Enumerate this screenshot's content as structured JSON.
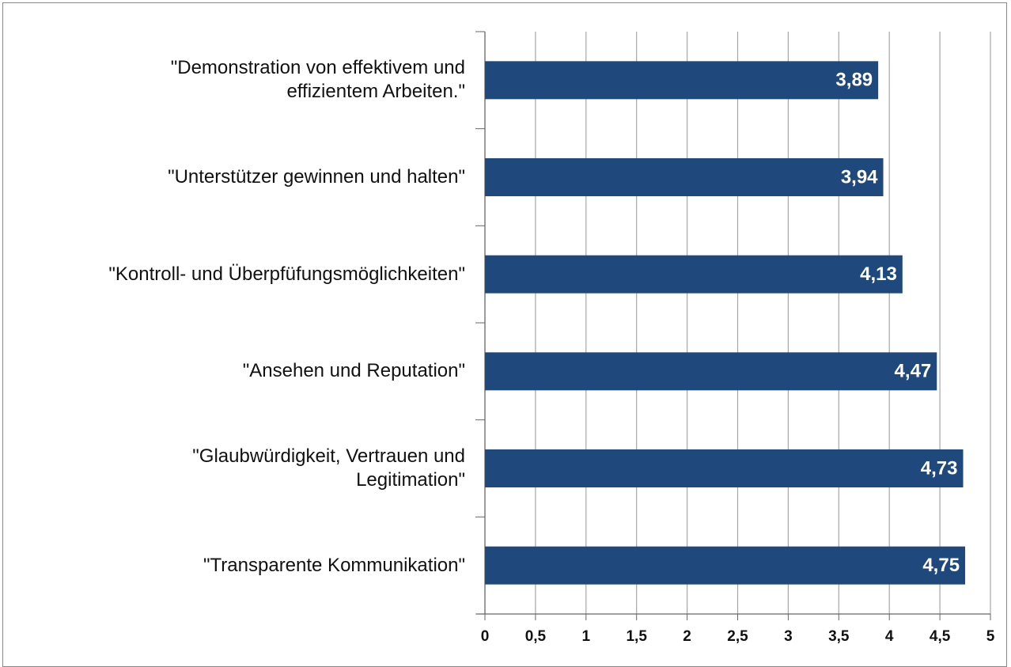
{
  "chart_data": {
    "type": "bar",
    "orientation": "horizontal",
    "categories": [
      "\"Demonstration von effektivem und effizientem Arbeiten.\"",
      "\"Unterstützer gewinnen und halten\"",
      "\"Kontroll- und Überpfüfungsmöglichkeiten\"",
      "\"Ansehen und Reputation\"",
      "\"Glaubwürdigkeit, Vertrauen und Legitimation\"",
      "\"Transparente Kommunikation\""
    ],
    "values": [
      3.89,
      3.94,
      4.13,
      4.47,
      4.73,
      4.75
    ],
    "value_labels": [
      "3,89",
      "3,94",
      "4,13",
      "4,47",
      "4,73",
      "4,75"
    ],
    "color": "#1f497d",
    "xlim": [
      0,
      5
    ],
    "xticks": [
      0,
      {
        "value": 0.5,
        "label": "0,5"
      },
      1,
      {
        "value": 1.5,
        "label": "1,5"
      },
      2,
      {
        "value": 2.5,
        "label": "2,5"
      },
      3,
      {
        "value": 3.5,
        "label": "3,5"
      },
      4,
      {
        "value": 4.5,
        "label": "4,5"
      },
      5
    ],
    "grid": true
  }
}
